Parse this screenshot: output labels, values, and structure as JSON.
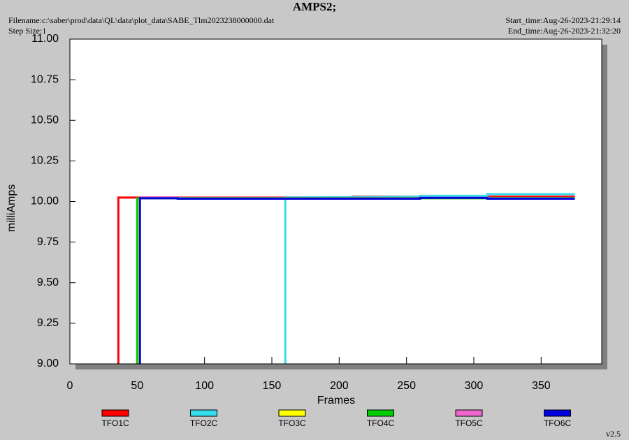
{
  "chart_data": {
    "type": "line",
    "title": "AMPS2;",
    "filename": "Filename:c:\\saber\\prod\\data\\QL\\data\\plot_data\\SABE_Tlm2023238000000.dat",
    "step_size": "Step Size:1",
    "start_time": "Start_time:Aug-26-2023-21:29:14",
    "end_time": "End_time:Aug-26-2023-21:32:20",
    "version": "v2.5",
    "x_label": "Frames",
    "y_label": "milliAmps",
    "xlim": [
      0,
      395
    ],
    "ylim": [
      9,
      11
    ],
    "xticks": [
      0,
      50,
      100,
      150,
      200,
      250,
      300,
      350
    ],
    "yticks": [
      {
        "value": 9,
        "label": "9.00"
      },
      {
        "value": 9.25,
        "label": "9.25"
      },
      {
        "value": 9.5,
        "label": "9.50"
      },
      {
        "value": 9.75,
        "label": "9.75"
      },
      {
        "value": 10,
        "label": "10.00"
      },
      {
        "value": 10.25,
        "label": "10.25"
      },
      {
        "value": 10.5,
        "label": "10.50"
      },
      {
        "value": 10.75,
        "label": "10.75"
      },
      {
        "value": 11,
        "label": "11.00"
      }
    ],
    "series": [
      {
        "name": "TFO3C",
        "color": "#ffff00",
        "x": [
          51,
          51,
          375
        ],
        "values": [
          9,
          10.02,
          10.02
        ]
      },
      {
        "name": "TFO1C",
        "color": "#ff0000",
        "x": [
          36,
          36,
          210,
          210,
          375
        ],
        "values": [
          9,
          10.024,
          10.024,
          10.03,
          10.03
        ]
      },
      {
        "name": "TFO2C",
        "color": "#33ddee",
        "x": [
          160,
          160,
          260,
          260,
          310,
          310,
          375
        ],
        "values": [
          9,
          10.025,
          10.03,
          10.035,
          10.035,
          10.045,
          10.045
        ]
      },
      {
        "name": "TFO5C",
        "color": "#ee66cc",
        "x": [
          52,
          80,
          80,
          375
        ],
        "values": [
          10.026,
          10.026,
          10.022,
          10.022
        ]
      },
      {
        "name": "TFO4C",
        "color": "#00cc00",
        "x": [
          50,
          50,
          375
        ],
        "values": [
          9,
          10.02,
          10.02
        ]
      },
      {
        "name": "TFO6C",
        "color": "#0000dd",
        "x": [
          52,
          52,
          80,
          80,
          260,
          260,
          310,
          310,
          375
        ],
        "values": [
          9,
          10.02,
          10.02,
          10.017,
          10.017,
          10.022,
          10.022,
          10.017,
          10.017
        ]
      }
    ],
    "legend": [
      "TFO1C",
      "TFO2C",
      "TFO3C",
      "TFO4C",
      "TFO5C",
      "TFO6C"
    ],
    "legend_colors": [
      "#ff0000",
      "#33ddee",
      "#ffff00",
      "#00cc00",
      "#ee66cc",
      "#0000dd"
    ]
  }
}
